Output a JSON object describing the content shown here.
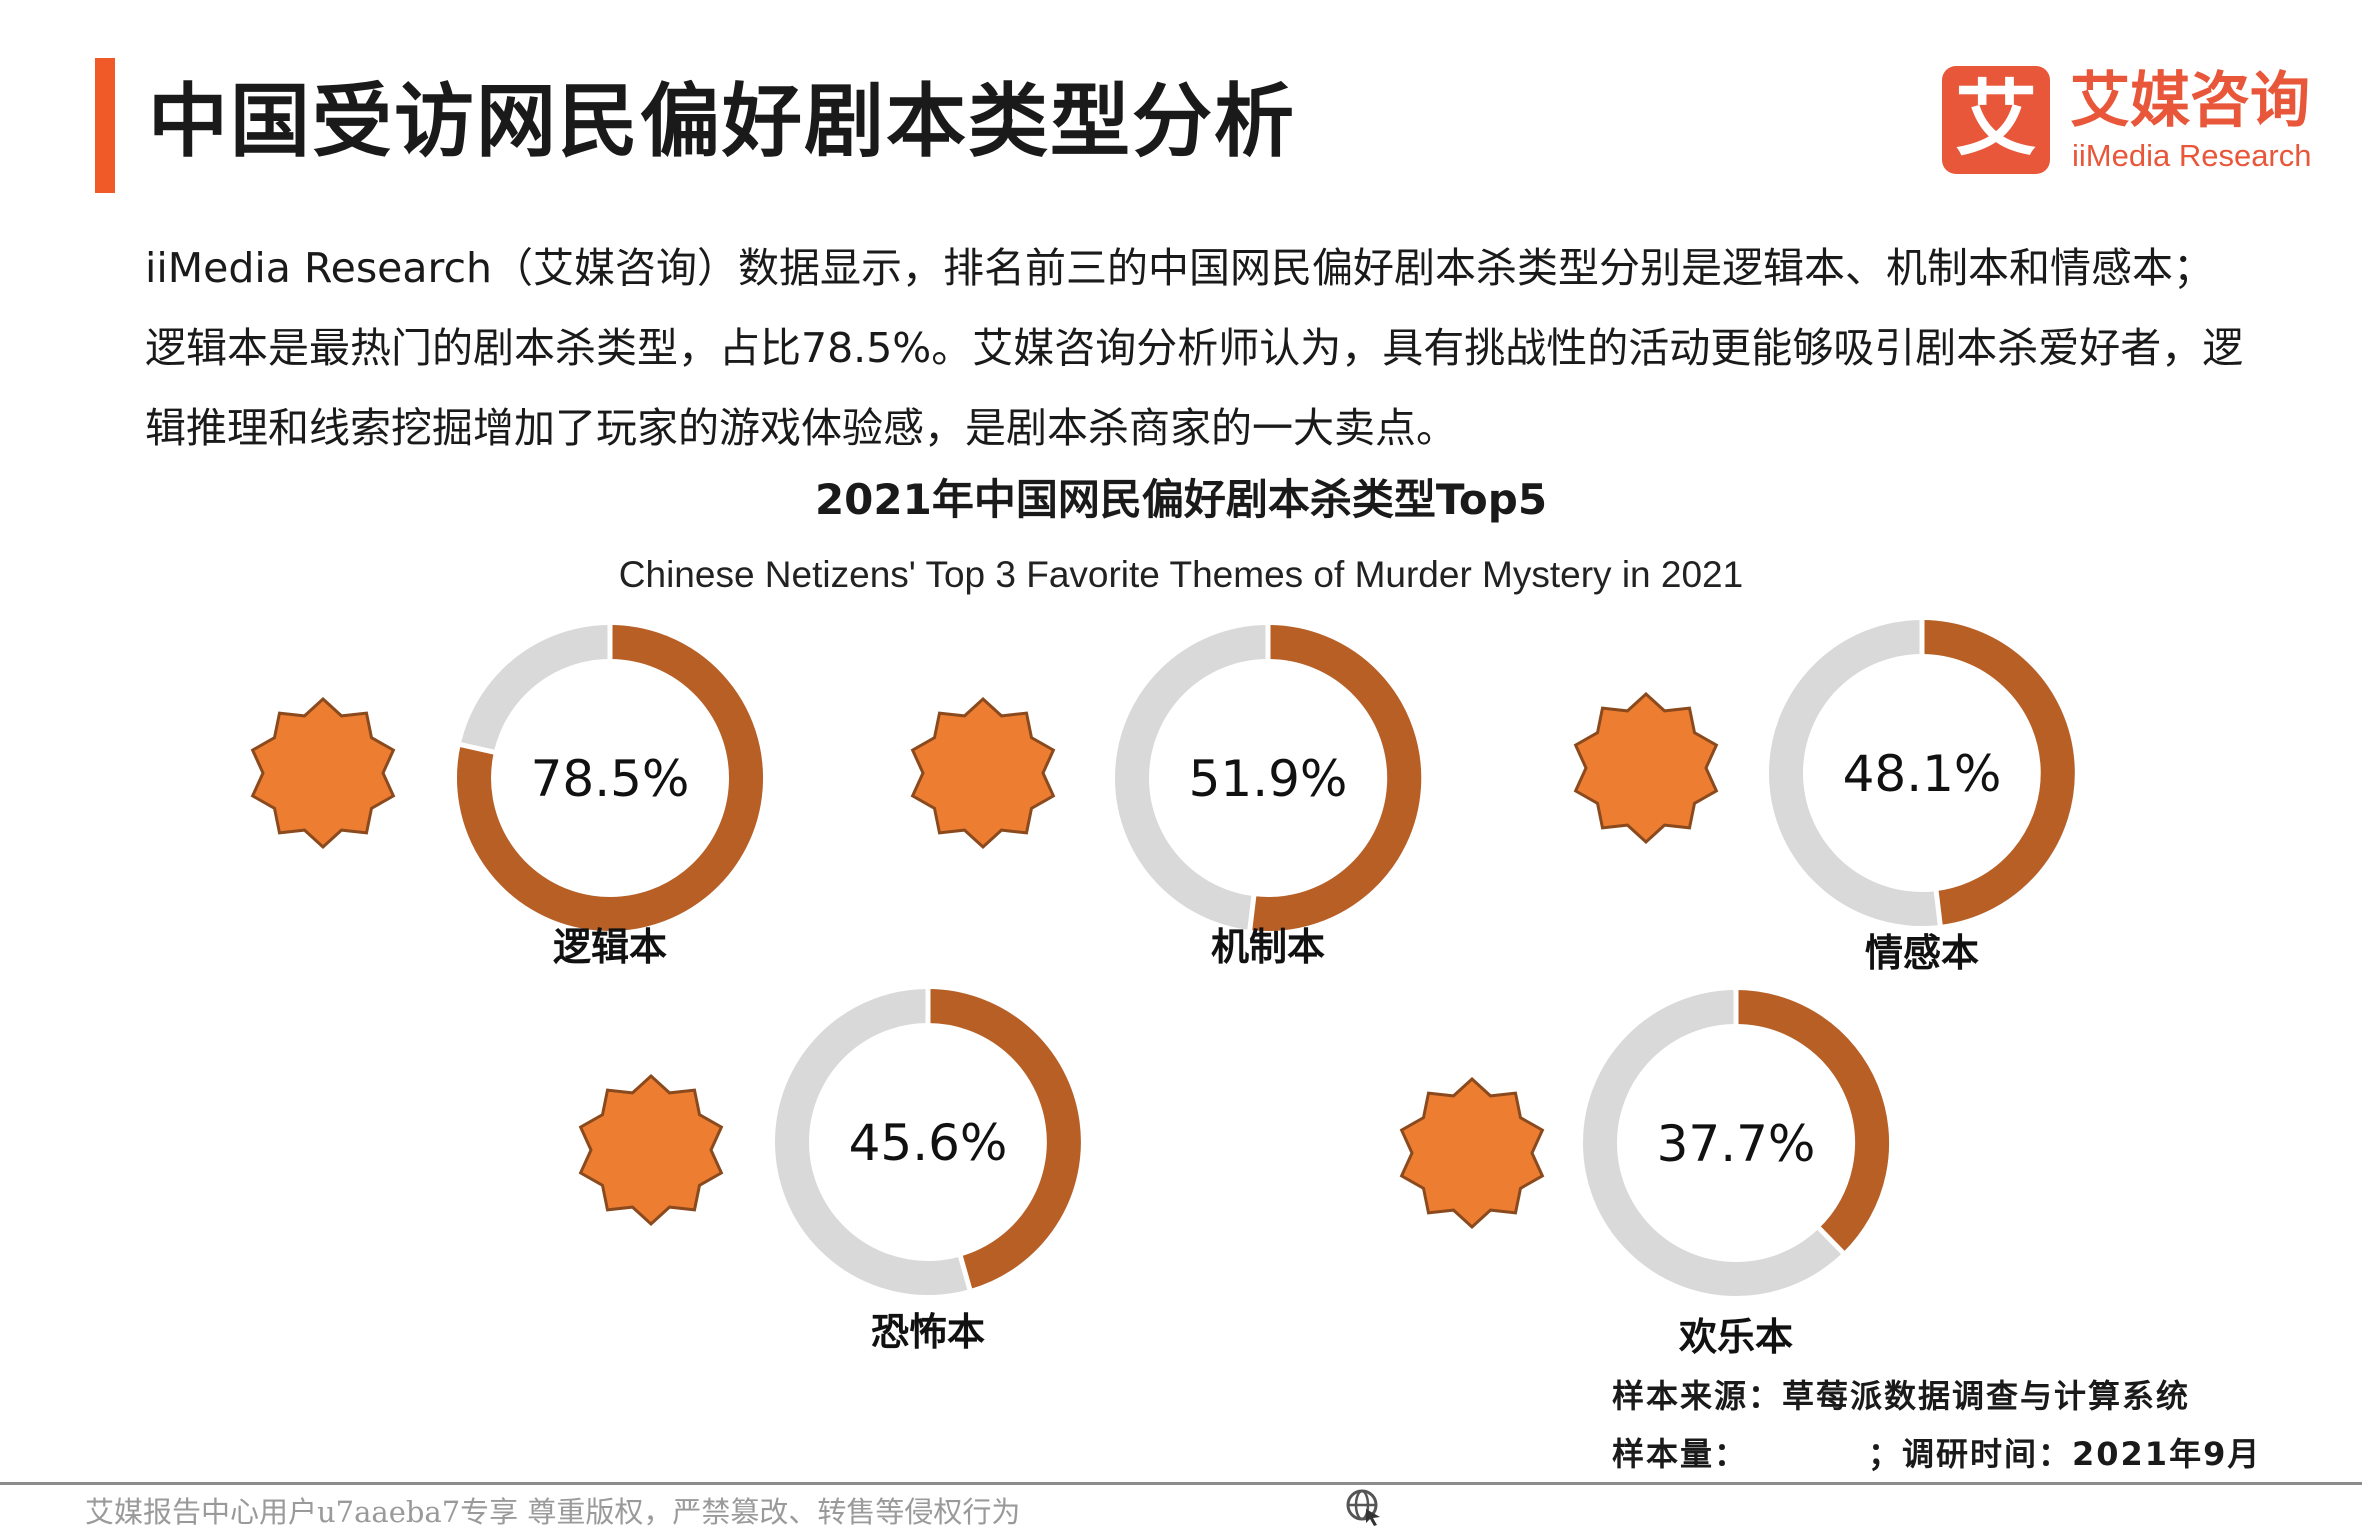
{
  "header": {
    "title": "中国受访网民偏好剧本类型分析",
    "logo_mark": "艾",
    "logo_cn": "艾媒咨询",
    "logo_en": "iiMedia Research"
  },
  "intro": "iiMedia Research（艾媒咨询）数据显示，排名前三的中国网民偏好剧本杀类型分别是逻辑本、机制本和情感本；逻辑本是最热门的剧本杀类型，占比78.5%。艾媒咨询分析师认为，具有挑战性的活动更能够吸引剧本杀爱好者，逻辑推理和线索挖掘增加了玩家的游戏体验感，是剧本杀商家的一大卖点。",
  "chart_data": {
    "type": "pie",
    "title": "2021年中国网民偏好剧本杀类型Top5",
    "subtitle": "Chinese Netizens' Top 3 Favorite Themes of Murder Mystery  in 2021",
    "unit": "%",
    "categories": [
      "逻辑本",
      "机制本",
      "情感本",
      "恐怖本",
      "欢乐本"
    ],
    "values": [
      78.5,
      51.9,
      48.1,
      45.6,
      37.7
    ],
    "labels": [
      "78.5%",
      "51.9%",
      "48.1%",
      "45.6%",
      "37.7%"
    ],
    "colors": {
      "value": "#b85f26",
      "remainder": "#d9d9d9",
      "badge": "#ed7d31",
      "badge_outline": "#8a4a1e"
    }
  },
  "footer": {
    "source": "样本来源：草莓派数据调查与计算系统",
    "sample": "样本量：　　　　；调研时间：2021年9月",
    "watermark": "艾媒报告中心用户u7aaeba7专享 尊重版权，严禁篡改、转售等侵权行为"
  },
  "colors": {
    "accent": "#f05a28",
    "logo": "#e9573b"
  }
}
